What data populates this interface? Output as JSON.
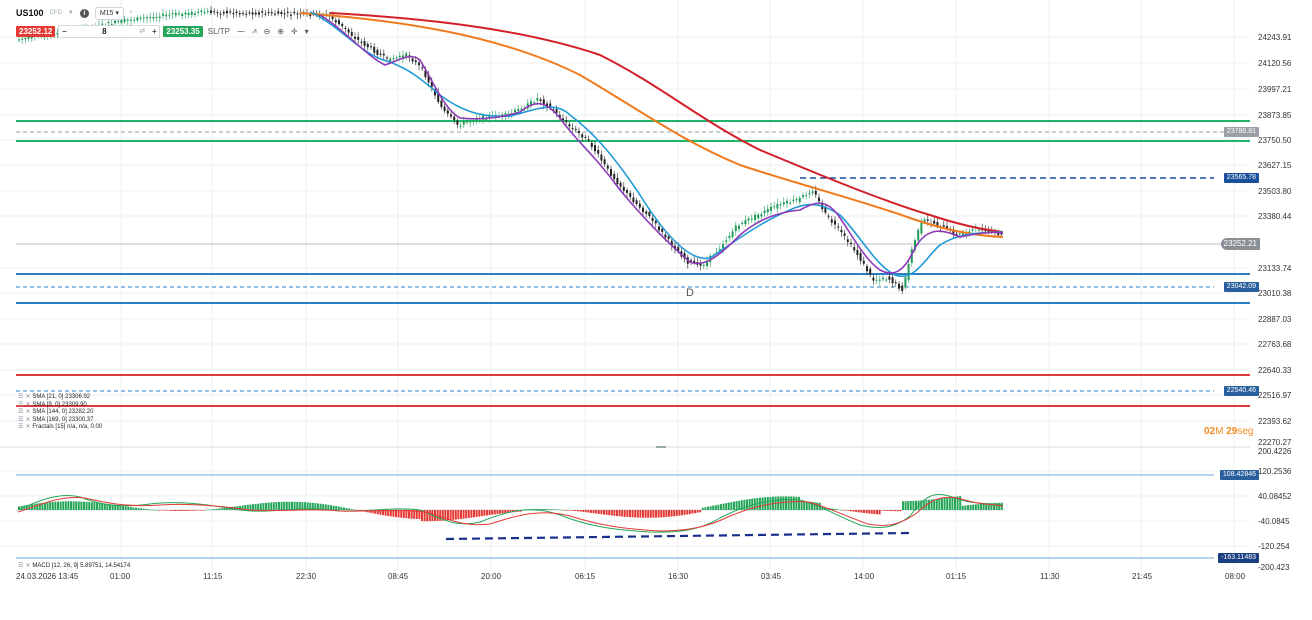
{
  "toolbar": {
    "symbol": "US100",
    "symbol_type": "CFD",
    "timeframe": "M15",
    "sell_price": "23252.12",
    "quantity": "8",
    "buy_price": "23253.35",
    "sltp_label": "SL/TP"
  },
  "price_axis": {
    "ticks": [
      "24243.91",
      "24120.56",
      "23997.21",
      "23873.85",
      "23750.50",
      "23627.15",
      "23503.80",
      "23380.44",
      "23252.21",
      "23133.74",
      "23010.38",
      "22887.03",
      "22763.68",
      "22640.33",
      "22516.97",
      "22393.62",
      "22270.27"
    ]
  },
  "macd_axis": {
    "ticks": [
      "200.4226",
      "120.2536",
      "40.08452",
      "-40.0845",
      "-120.254",
      "-200.423"
    ]
  },
  "time_axis": {
    "labels": [
      "24.03.2026 13:45",
      "01:00",
      "11:15",
      "22:30",
      "08:45",
      "20:00",
      "06:15",
      "16:30",
      "03:45",
      "14:00",
      "01:15",
      "11:30",
      "21:45",
      "08:00"
    ]
  },
  "price_labels": {
    "level_1": "23786.81",
    "level_2": "23565.78",
    "current": "23252.21",
    "level_3": "23042.09",
    "level_4": "22540.46",
    "macd_upper": "108.42846",
    "macd_lower": "-163.11483"
  },
  "indicators": [
    {
      "label": "SMA [21, 0] 23306.92",
      "color": "#1f9ad6"
    },
    {
      "label": "SMA [9, 0] 23309.90",
      "color": "#8e3ab8"
    },
    {
      "label": "SMA [144, 0] 23282.20",
      "color": "#f07b1e"
    },
    {
      "label": "SMA [169, 0] 23300.37",
      "color": "#d3202a"
    },
    {
      "label": "Fractals [15] n/a, n/a, 0.00",
      "color": "#888888"
    }
  ],
  "macd_legend": "MACD [12, 26, 9] 5.89751, 14.54174",
  "timer": {
    "minutes": "02",
    "m_unit": "M",
    "seconds": "29",
    "s_unit": "seg"
  },
  "pattern_label": "D",
  "colors": {
    "green_level": "#1fb46a",
    "blue_level": "#2b7fc4",
    "red_level": "#e03a3e",
    "dashed_blue": "#1a4f9c",
    "current_price_label": "#8a8f96",
    "label_bg": "#2a5f9e",
    "grey_label": "#9aa0a6"
  }
}
